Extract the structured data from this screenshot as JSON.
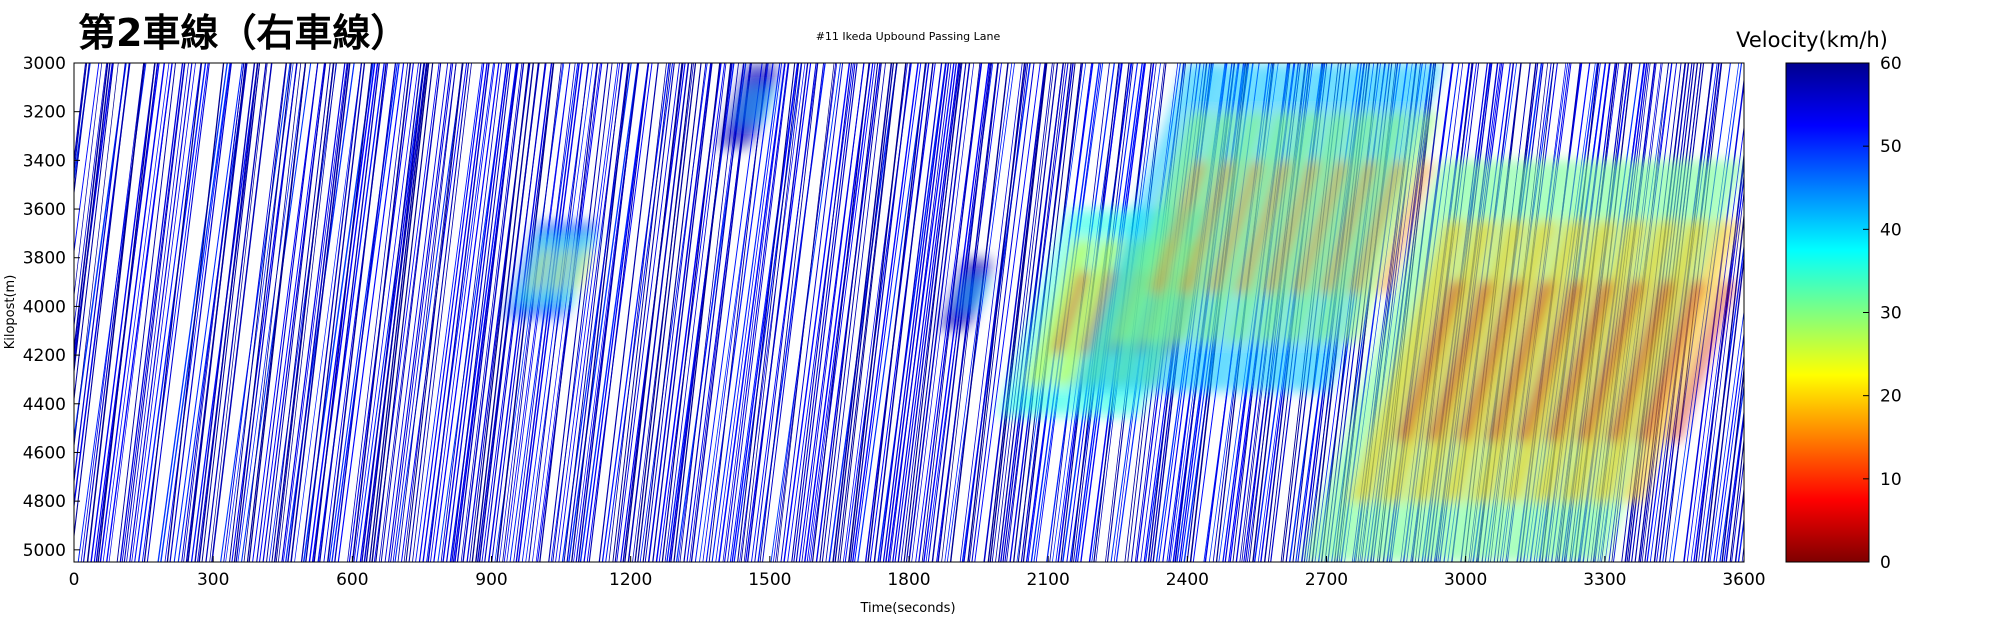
{
  "page_title": "第2車線（右車線）",
  "chart_data": {
    "type": "heatmap",
    "title": "#11 Ikeda Upbound Passing Lane",
    "xlabel": "Time(seconds)",
    "ylabel": "Kilopost(m)",
    "xlim": [
      0,
      3600
    ],
    "ylim": [
      3000,
      5050
    ],
    "y_inverted": true,
    "x_ticks": [
      0,
      300,
      600,
      900,
      1200,
      1500,
      1800,
      2100,
      2400,
      2700,
      3000,
      3300,
      3600
    ],
    "y_ticks": [
      3000,
      3200,
      3400,
      3600,
      3800,
      4000,
      4200,
      4400,
      4600,
      4800,
      5000
    ],
    "colorbar": {
      "label": "Velocity(km/h)",
      "min": 0,
      "max": 60,
      "ticks": [
        0,
        10,
        20,
        30,
        40,
        50,
        60
      ],
      "colormap": [
        "#7f0000",
        "#ff0000",
        "#ff8000",
        "#ffff00",
        "#80ff80",
        "#00ffff",
        "#0080ff",
        "#0000ff",
        "#00008f"
      ]
    },
    "grid": false,
    "free_flow_velocity_kmh": 58,
    "congestion_regions": [
      {
        "t_start": 1000,
        "t_end": 1130,
        "kp_start": 3650,
        "kp_end": 4050,
        "min_velocity_kmh": 22
      },
      {
        "t_start": 1450,
        "t_end": 1520,
        "kp_start": 3000,
        "kp_end": 3350,
        "min_velocity_kmh": 40
      },
      {
        "t_start": 1920,
        "t_end": 1980,
        "kp_start": 3800,
        "kp_end": 4100,
        "min_velocity_kmh": 40
      },
      {
        "t_start": 2150,
        "t_end": 2450,
        "kp_start": 3600,
        "kp_end": 4450,
        "min_velocity_kmh": 10
      },
      {
        "t_start": 2400,
        "t_end": 2950,
        "kp_start": 3000,
        "kp_end": 4350,
        "min_velocity_kmh": 15
      },
      {
        "t_start": 2950,
        "t_end": 3600,
        "kp_start": 3400,
        "kp_end": 5050,
        "min_velocity_kmh": 5
      }
    ]
  }
}
